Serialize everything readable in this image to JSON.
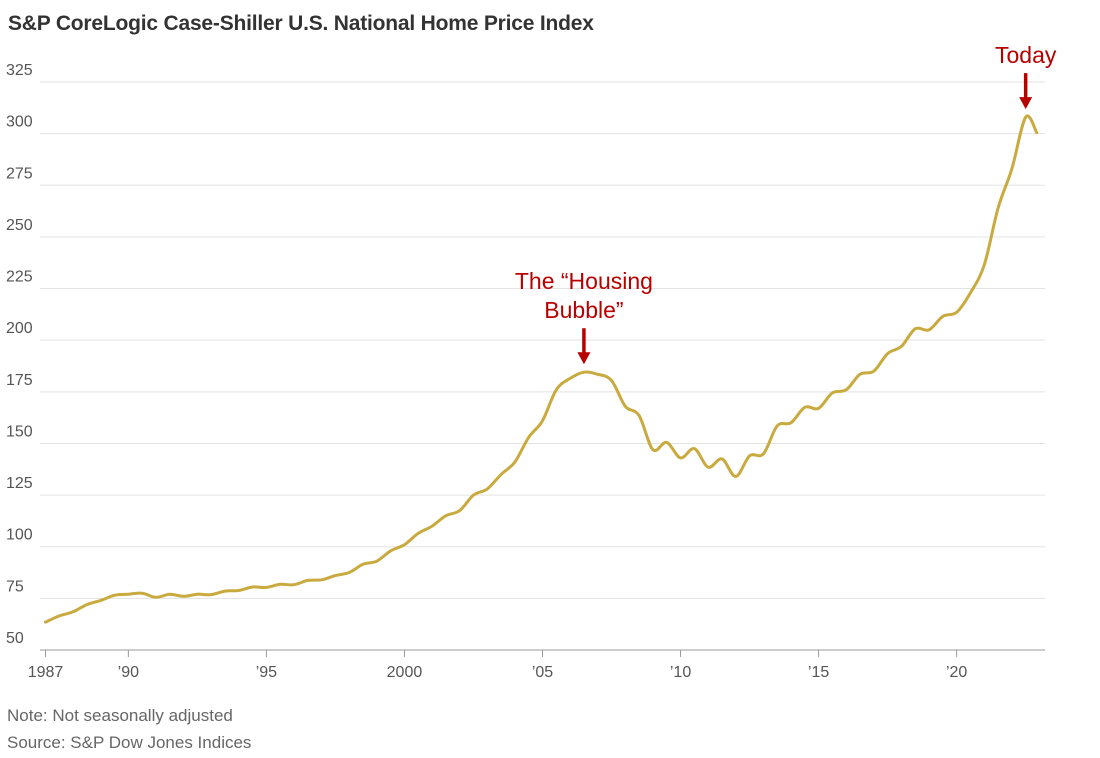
{
  "chart_data": {
    "type": "line",
    "title": "S&P CoreLogic Case-Shiller U.S. National Home Price Index",
    "xlabel": "",
    "ylabel": "",
    "xlim": [
      1986.8,
      2023.2
    ],
    "ylim": [
      50,
      325
    ],
    "yticks": [
      50,
      75,
      100,
      125,
      150,
      175,
      200,
      225,
      250,
      275,
      300,
      325
    ],
    "xticks": [
      {
        "value": 1987,
        "label": "1987"
      },
      {
        "value": 1990,
        "label": "’90"
      },
      {
        "value": 1995,
        "label": "’95"
      },
      {
        "value": 2000,
        "label": "2000"
      },
      {
        "value": 2005,
        "label": "’05"
      },
      {
        "value": 2010,
        "label": "’10"
      },
      {
        "value": 2015,
        "label": "’15"
      },
      {
        "value": 2020,
        "label": "’20"
      }
    ],
    "grid": true,
    "line_color": "#C9AA3F",
    "annotation_color": "#B80000",
    "series": [
      {
        "name": "",
        "points": [
          [
            1987.0,
            63.5
          ],
          [
            1987.5,
            66.5
          ],
          [
            1988.0,
            68.5
          ],
          [
            1988.5,
            72.0
          ],
          [
            1989.0,
            74.0
          ],
          [
            1989.5,
            76.5
          ],
          [
            1990.0,
            77.0
          ],
          [
            1990.5,
            77.5
          ],
          [
            1991.0,
            75.5
          ],
          [
            1991.5,
            77.0
          ],
          [
            1992.0,
            76.0
          ],
          [
            1992.5,
            77.0
          ],
          [
            1993.0,
            76.8
          ],
          [
            1993.5,
            78.5
          ],
          [
            1994.0,
            78.8
          ],
          [
            1994.5,
            80.5
          ],
          [
            1995.0,
            80.3
          ],
          [
            1995.5,
            81.8
          ],
          [
            1996.0,
            81.6
          ],
          [
            1996.5,
            83.7
          ],
          [
            1997.0,
            84.0
          ],
          [
            1997.5,
            86.0
          ],
          [
            1998.0,
            87.5
          ],
          [
            1998.5,
            91.5
          ],
          [
            1999.0,
            93.0
          ],
          [
            1999.5,
            98.0
          ],
          [
            2000.0,
            101.0
          ],
          [
            2000.5,
            106.5
          ],
          [
            2001.0,
            110.0
          ],
          [
            2001.5,
            115.0
          ],
          [
            2002.0,
            117.5
          ],
          [
            2002.5,
            125.0
          ],
          [
            2003.0,
            128.0
          ],
          [
            2003.5,
            135.0
          ],
          [
            2004.0,
            141.0
          ],
          [
            2004.5,
            153.0
          ],
          [
            2005.0,
            161.0
          ],
          [
            2005.5,
            176.0
          ],
          [
            2006.0,
            181.5
          ],
          [
            2006.5,
            184.5
          ],
          [
            2007.0,
            183.5
          ],
          [
            2007.5,
            180.5
          ],
          [
            2008.0,
            168.0
          ],
          [
            2008.5,
            163.5
          ],
          [
            2009.0,
            147.0
          ],
          [
            2009.5,
            150.5
          ],
          [
            2010.0,
            143.0
          ],
          [
            2010.5,
            147.5
          ],
          [
            2011.0,
            138.5
          ],
          [
            2011.5,
            142.5
          ],
          [
            2012.0,
            134.0
          ],
          [
            2012.5,
            144.0
          ],
          [
            2013.0,
            145.0
          ],
          [
            2013.5,
            158.5
          ],
          [
            2014.0,
            160.0
          ],
          [
            2014.5,
            167.5
          ],
          [
            2015.0,
            167.0
          ],
          [
            2015.5,
            174.5
          ],
          [
            2016.0,
            176.0
          ],
          [
            2016.5,
            183.5
          ],
          [
            2017.0,
            185.0
          ],
          [
            2017.5,
            193.5
          ],
          [
            2018.0,
            197.0
          ],
          [
            2018.5,
            205.5
          ],
          [
            2019.0,
            205.0
          ],
          [
            2019.5,
            211.5
          ],
          [
            2020.0,
            213.5
          ],
          [
            2020.5,
            223.0
          ],
          [
            2021.0,
            236.5
          ],
          [
            2021.5,
            264.0
          ],
          [
            2022.0,
            283.0
          ],
          [
            2022.5,
            308.0
          ],
          [
            2022.9,
            300.5
          ]
        ]
      }
    ],
    "annotations": [
      {
        "lines": [
          "The “Housing",
          "Bubble”"
        ],
        "x": 2006.5,
        "y": 184.5
      },
      {
        "lines": [
          "Today"
        ],
        "x": 2022.5,
        "y": 308.0
      }
    ],
    "notes": [
      "Note: Not seasonally adjusted",
      "Source: S&P Dow Jones Indices"
    ]
  }
}
